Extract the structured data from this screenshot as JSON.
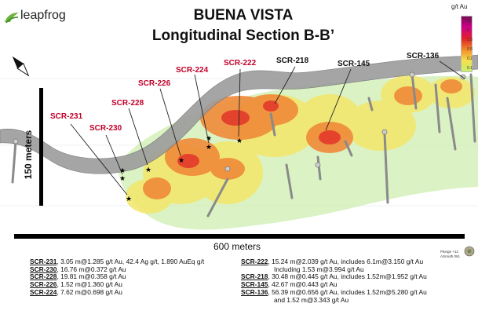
{
  "brand": {
    "name": "leapfrog"
  },
  "title": {
    "line1": "BUENA VISTA",
    "line2": "Longitudinal Section B-B’"
  },
  "legend": {
    "title": "g/t Au",
    "colors": [
      "#7a0a5a",
      "#d0008a",
      "#e0202a",
      "#f08a2a",
      "#f7e04a",
      "#c8ef6a"
    ],
    "ticks": [
      "10",
      "5",
      "1.5",
      "0.5",
      "0.2",
      "0.1"
    ]
  },
  "north_icon": "north-arrow-icon",
  "scale": {
    "vertical": "150 meters",
    "horizontal": "600 meters"
  },
  "view": {
    "plunge": "Plunge +12",
    "azimuth": "Azimuth 061"
  },
  "holes": [
    {
      "id": "SCR-231",
      "color": "red"
    },
    {
      "id": "SCR-230",
      "color": "red"
    },
    {
      "id": "SCR-228",
      "color": "red"
    },
    {
      "id": "SCR-226",
      "color": "red"
    },
    {
      "id": "SCR-224",
      "color": "red"
    },
    {
      "id": "SCR-222",
      "color": "red"
    },
    {
      "id": "SCR-218",
      "color": "black"
    },
    {
      "id": "SCR-145",
      "color": "black"
    },
    {
      "id": "SCR-136",
      "color": "black"
    }
  ],
  "results_left": [
    {
      "id": "SCR-231",
      "text": ", 3.05 m@1.285 g/t Au, 42.4 Ag g/t, 1.890 AuEq g/t"
    },
    {
      "id": "SCR-230",
      "text": ", 16.76 m@0.372 g/t Au"
    },
    {
      "id": "SCR-228",
      "text": ", 19.81 m@0.358 g/t Au"
    },
    {
      "id": "SCR-226",
      "text": ", 1.52 m@1.360 g/t Au"
    },
    {
      "id": "SCR-224",
      "text": ", 7.62 m@0.698 g/t Au"
    }
  ],
  "results_right": [
    {
      "id": "SCR-222",
      "text": ", 15.24 m@2.039 g/t Au, includes 6.1m@3.150 g/t Au",
      "cont": "Including 1.53 m@3.994 g/t Au"
    },
    {
      "id": "SCR-218",
      "text": ", 30.48 m@0.445 g/t Au, includes 1.52m@1.952 g/t Au"
    },
    {
      "id": "SCR-145",
      "text": ", 42.67 m@0.443 g/t Au"
    },
    {
      "id": "SCR-136",
      "text": ", 56.39 m@0.656 g/t Au, includes 1.52m@5.280 g/t Au",
      "cont": "and 1.52 m@3.343 g/t Au"
    }
  ]
}
